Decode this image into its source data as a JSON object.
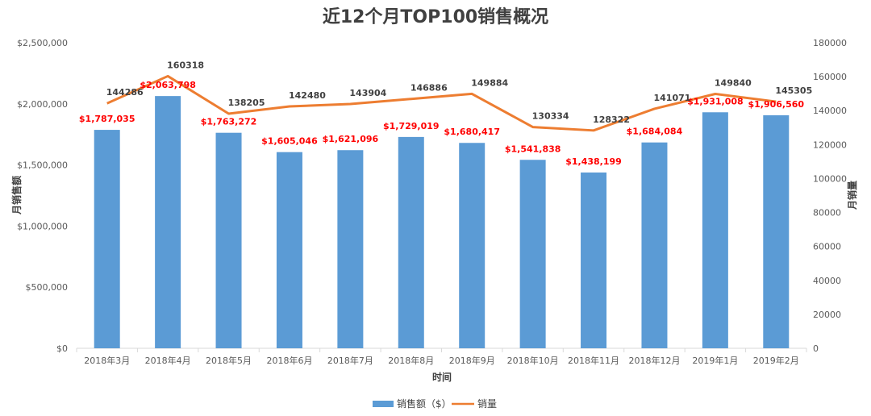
{
  "chart_data": {
    "type": "bar+line",
    "title": "近12个月TOP100销售概况",
    "categories": [
      "2018年3月",
      "2018年4月",
      "2018年5月",
      "2018年6月",
      "2018年7月",
      "2018年8月",
      "2018年9月",
      "2018年10月",
      "2018年11月",
      "2018年12月",
      "2019年1月",
      "2019年2月"
    ],
    "xlabel": "时间",
    "ylabel_left": "月销售额",
    "ylabel_right": "月销量",
    "ylim_left": [
      0,
      2500000
    ],
    "yticks_left": [
      "$0",
      "$500,000",
      "$1,000,000",
      "$1,500,000",
      "$2,000,000",
      "$2,500,000"
    ],
    "ylim_right": [
      0,
      180000
    ],
    "yticks_right": [
      "0",
      "20000",
      "40000",
      "60000",
      "80000",
      "100000",
      "120000",
      "140000",
      "160000",
      "180000"
    ],
    "grid": false,
    "legend_position": "bottom",
    "colors": {
      "bar": "#5b9bd5",
      "line": "#ed7d31",
      "bar_label": "#ff0000",
      "line_label": "#404040"
    },
    "series": [
      {
        "name": "销售额（$）",
        "type": "bar",
        "axis": "left",
        "values": [
          1787035,
          2063798,
          1763272,
          1605046,
          1621096,
          1729019,
          1680417,
          1541838,
          1438199,
          1684084,
          1931008,
          1906560
        ],
        "labels": [
          "$1,787,035",
          "$2,063,798",
          "$1,763,272",
          "$1,605,046",
          "$1,621,096",
          "$1,729,019",
          "$1,680,417",
          "$1,541,838",
          "$1,438,199",
          "$1,684,084",
          "$1,931,008",
          "$1,906,560"
        ]
      },
      {
        "name": "销量",
        "type": "line",
        "axis": "right",
        "values": [
          144286,
          160318,
          138205,
          142480,
          143904,
          146886,
          149884,
          130334,
          128322,
          141071,
          149840,
          145305
        ],
        "labels": [
          "144286",
          "160318",
          "138205",
          "142480",
          "143904",
          "146886",
          "149884",
          "130334",
          "128322",
          "141071",
          "149840",
          "145305"
        ]
      }
    ]
  }
}
